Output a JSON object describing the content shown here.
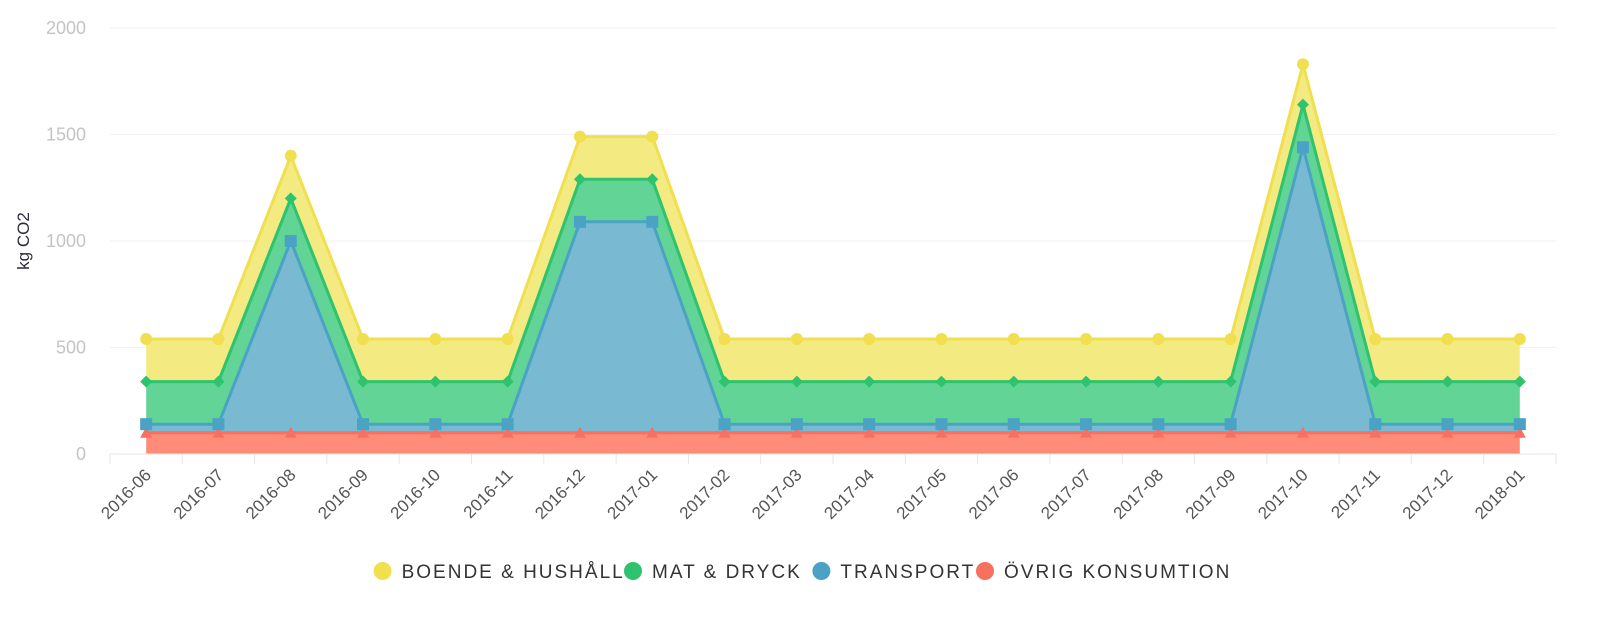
{
  "chart_data": {
    "type": "area",
    "stacked": true,
    "ylabel": "kg CO2",
    "xlabel": "",
    "ylim": [
      0,
      2000
    ],
    "yticks": [
      0,
      500,
      1000,
      1500,
      2000
    ],
    "categories": [
      "2016-06",
      "2016-07",
      "2016-08",
      "2016-09",
      "2016-10",
      "2016-11",
      "2016-12",
      "2017-01",
      "2017-02",
      "2017-03",
      "2017-04",
      "2017-05",
      "2017-06",
      "2017-07",
      "2017-08",
      "2017-09",
      "2017-10",
      "2017-11",
      "2017-12",
      "2018-01"
    ],
    "series": [
      {
        "name": "ÖVRIG KONSUMTION",
        "color": "#f87060",
        "fill": "#ff8c78",
        "marker": "triangle",
        "values": [
          100,
          100,
          100,
          100,
          100,
          100,
          100,
          100,
          100,
          100,
          100,
          100,
          100,
          100,
          100,
          100,
          100,
          100,
          100,
          100
        ]
      },
      {
        "name": "TRANSPORT",
        "color": "#4aa3c4",
        "fill": "#79b9d2",
        "marker": "square",
        "values": [
          40,
          40,
          900,
          40,
          40,
          40,
          990,
          990,
          40,
          40,
          40,
          40,
          40,
          40,
          40,
          40,
          1340,
          40,
          40,
          40
        ]
      },
      {
        "name": "MAT & DRYCK",
        "color": "#2ec36e",
        "fill": "#62d495",
        "marker": "diamond",
        "values": [
          200,
          200,
          200,
          200,
          200,
          200,
          200,
          200,
          200,
          200,
          200,
          200,
          200,
          200,
          200,
          200,
          200,
          200,
          200,
          200
        ]
      },
      {
        "name": "BOENDE & HUSHÅLL",
        "color": "#f0e050",
        "fill": "#f3ea82",
        "marker": "circle",
        "values": [
          200,
          200,
          200,
          200,
          200,
          200,
          200,
          200,
          200,
          200,
          200,
          200,
          200,
          200,
          200,
          200,
          190,
          200,
          200,
          200
        ]
      }
    ],
    "legend": {
      "position": "bottom",
      "order": [
        "BOENDE & HUSHÅLL",
        "MAT & DRYCK",
        "TRANSPORT",
        "ÖVRIG KONSUMTION"
      ]
    },
    "grid": true
  }
}
